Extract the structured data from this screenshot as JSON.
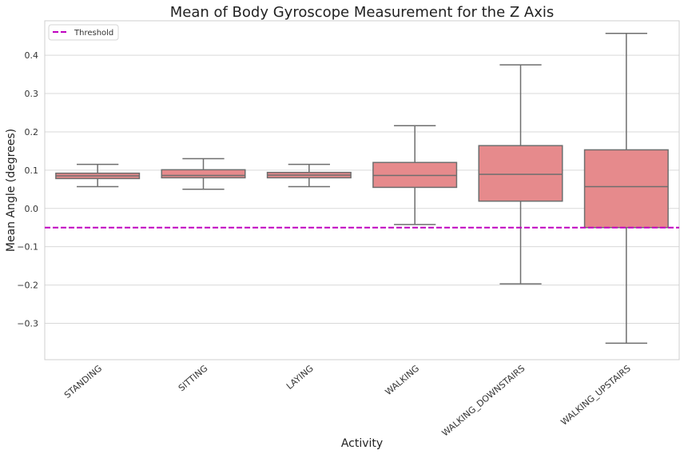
{
  "chart_data": {
    "type": "box",
    "title": "Mean of Body Gyroscope Measurement for the Z Axis",
    "xlabel": "Activity",
    "ylabel": "Mean Angle (degrees)",
    "ylim": [
      -0.395,
      0.49
    ],
    "yticks": [
      -0.3,
      -0.2,
      -0.1,
      0.0,
      0.1,
      0.2,
      0.3,
      0.4
    ],
    "ytick_labels": [
      "−0.3",
      "−0.2",
      "−0.1",
      "0.0",
      "0.1",
      "0.2",
      "0.3",
      "0.4"
    ],
    "categories": [
      "STANDING",
      "SITTING",
      "LAYING",
      "WALKING",
      "WALKING_DOWNSTAIRS",
      "WALKING_UPSTAIRS"
    ],
    "boxes": [
      {
        "whisker_low": 0.057,
        "q1": 0.078,
        "median": 0.085,
        "q3": 0.092,
        "whisker_high": 0.115
      },
      {
        "whisker_low": 0.05,
        "q1": 0.08,
        "median": 0.086,
        "q3": 0.101,
        "whisker_high": 0.13
      },
      {
        "whisker_low": 0.057,
        "q1": 0.08,
        "median": 0.087,
        "q3": 0.094,
        "whisker_high": 0.115
      },
      {
        "whisker_low": -0.042,
        "q1": 0.055,
        "median": 0.086,
        "q3": 0.12,
        "whisker_high": 0.216
      },
      {
        "whisker_low": -0.197,
        "q1": 0.019,
        "median": 0.089,
        "q3": 0.164,
        "whisker_high": 0.375
      },
      {
        "whisker_low": -0.352,
        "q1": -0.05,
        "median": 0.057,
        "q3": 0.153,
        "whisker_high": 0.457
      }
    ],
    "threshold": {
      "value": -0.05,
      "label": "Threshold",
      "color": "#bf00bf"
    },
    "box_color": "#e68a8c",
    "line_color": "#6e6e6e",
    "grid": true,
    "legend_position": "top-left"
  }
}
